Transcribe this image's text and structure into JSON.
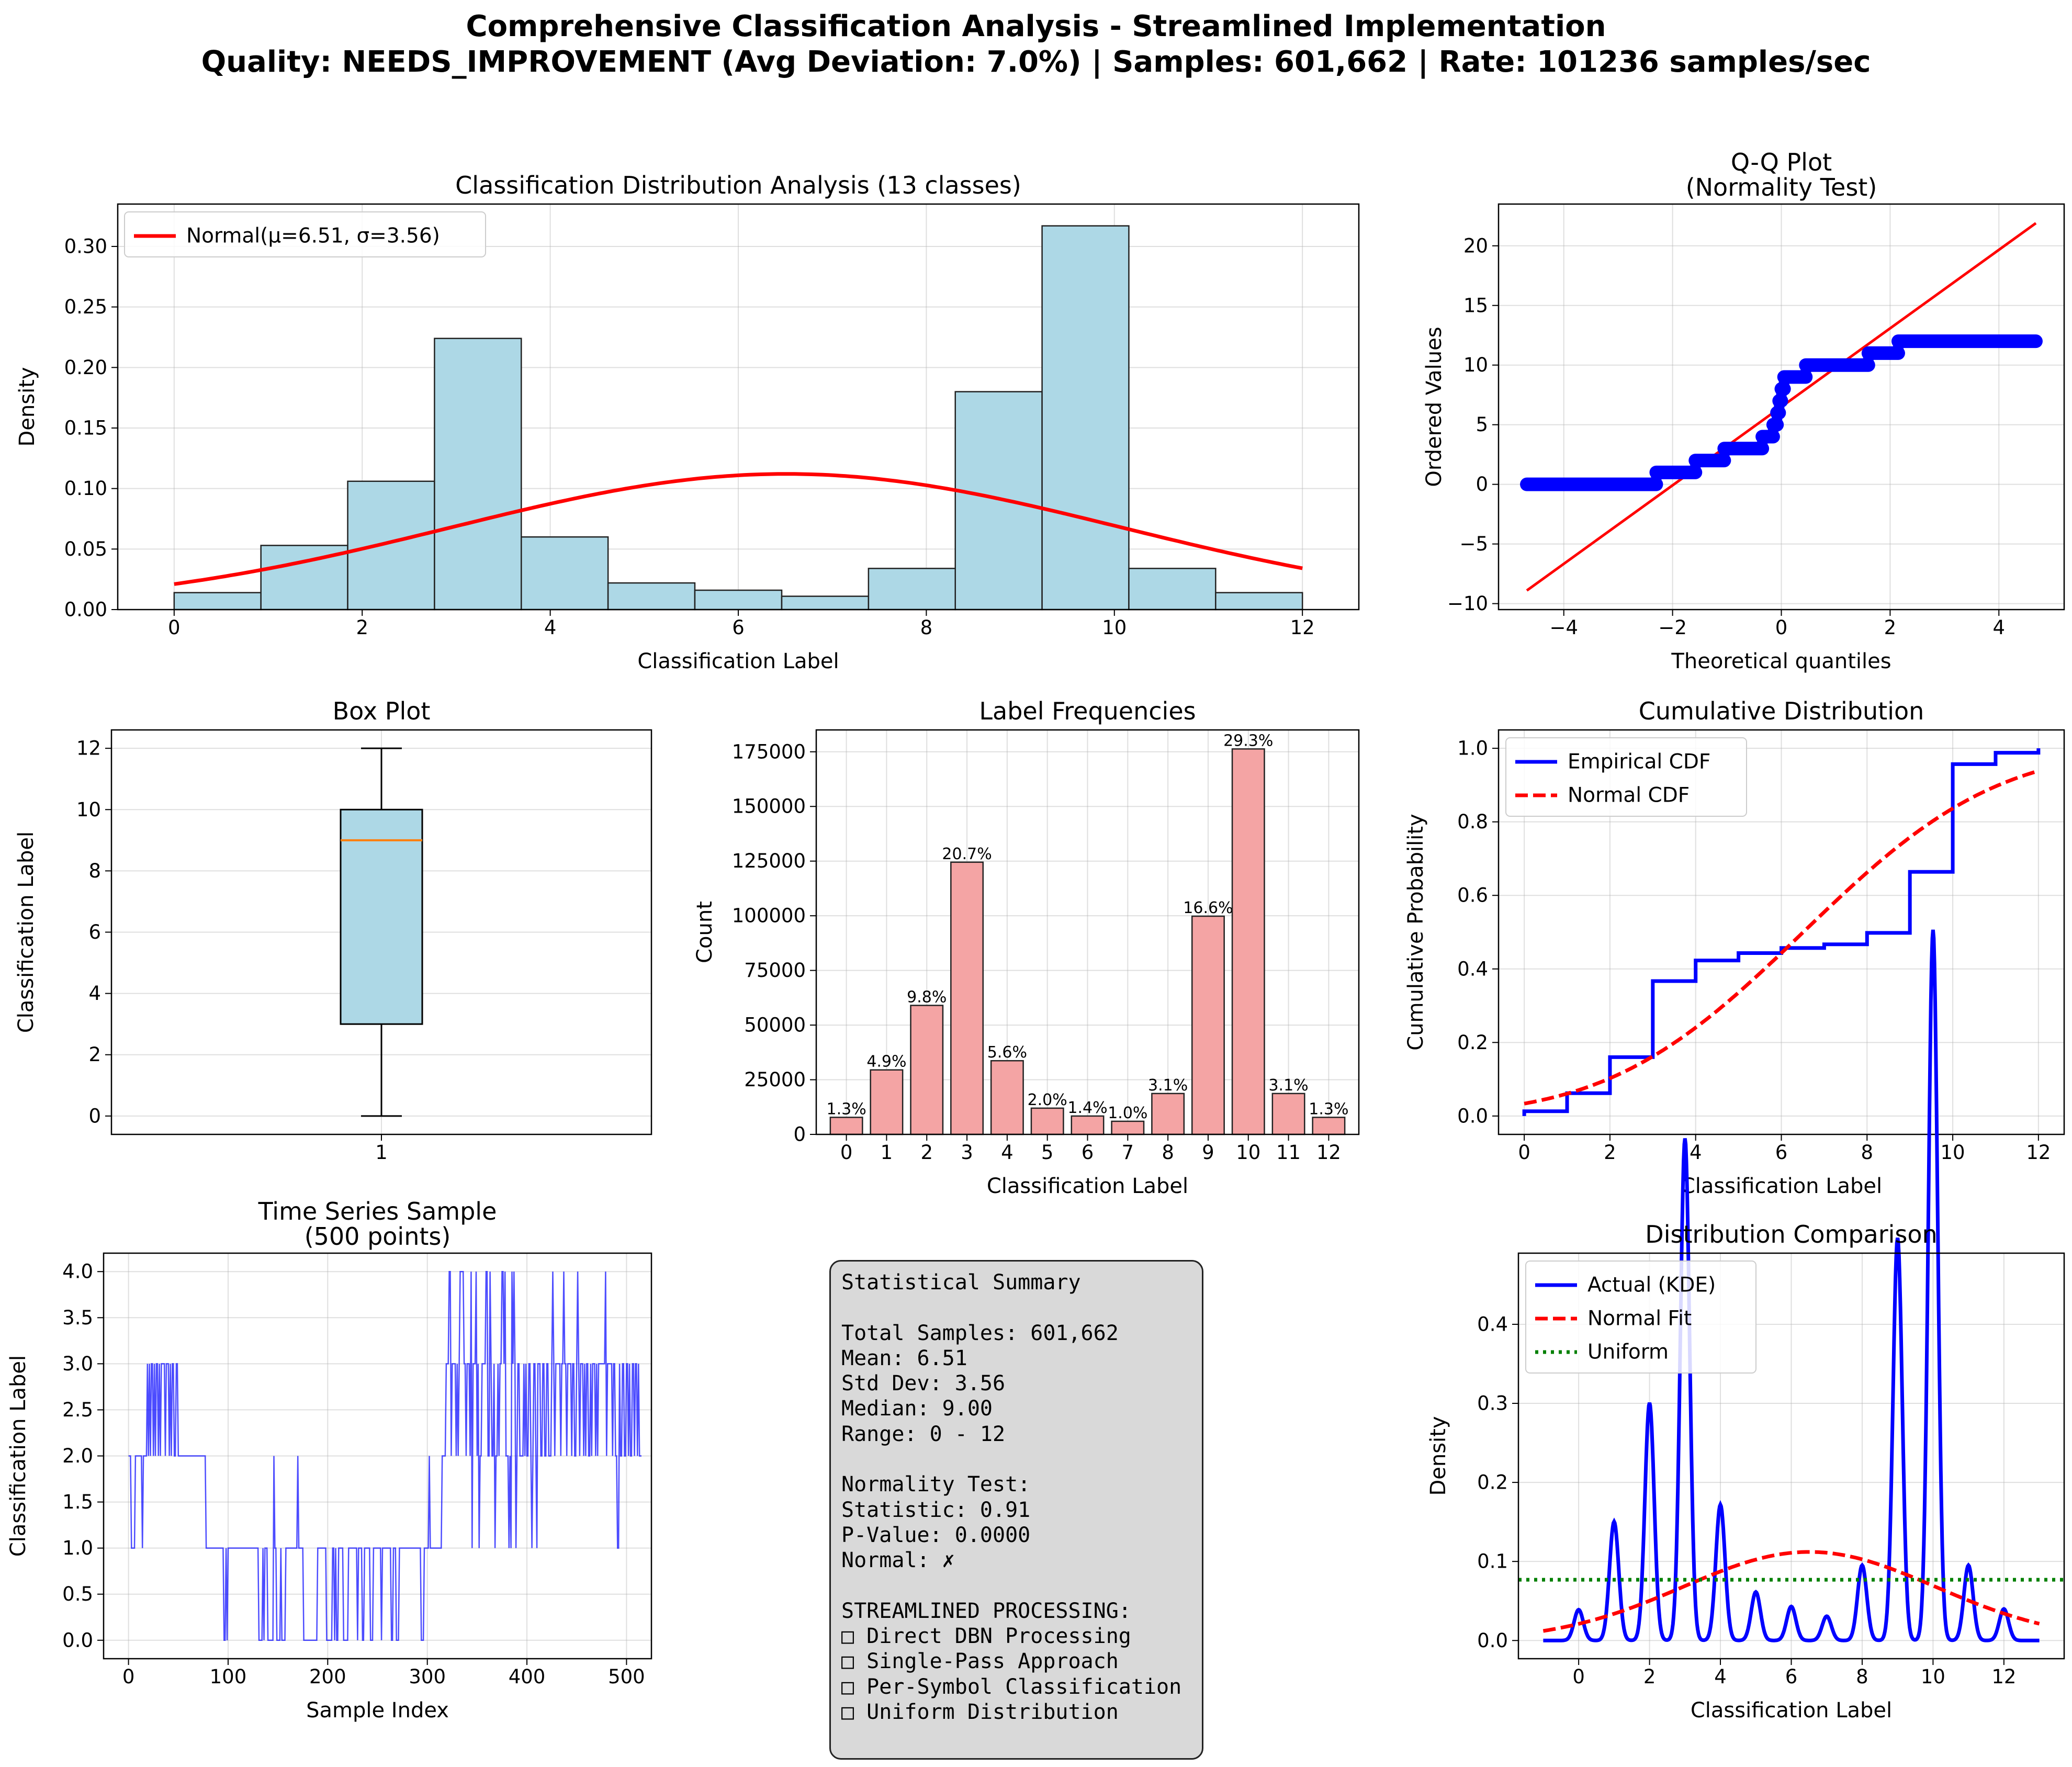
{
  "figure": {
    "title_line1": "Comprehensive Classification Analysis - Streamlined Implementation",
    "title_line2": "Quality: NEEDS_IMPROVEMENT (Avg Deviation: 7.0%) | Samples: 601,662 | Rate: 101236 samples/sec"
  },
  "colors": {
    "hist_fill": "#add8e6",
    "bar_fill": "#f4a4a4",
    "fit_red": "#ff0000",
    "empirical_blue": "#0000ff",
    "uniform_green": "#008000",
    "median_orange": "#ff7f0e",
    "box_fill": "#add8e6",
    "stats_bg": "#d9d9d9"
  },
  "chart_data": [
    {
      "id": "histogram",
      "type": "bar",
      "title": "Classification Distribution Analysis (13 classes)",
      "xlabel": "Classification Label",
      "ylabel": "Density",
      "xlim": [
        -0.6,
        12.6
      ],
      "ylim": [
        0,
        0.335
      ],
      "xticks": [
        0,
        2,
        4,
        6,
        8,
        10,
        12
      ],
      "yticks": [
        0.0,
        0.05,
        0.1,
        0.15,
        0.2,
        0.25,
        0.3
      ],
      "ytick_labels": [
        "0.00",
        "0.05",
        "0.10",
        "0.15",
        "0.20",
        "0.25",
        "0.30"
      ],
      "bin_edges": [
        0,
        0.923,
        1.846,
        2.769,
        3.692,
        4.615,
        5.538,
        6.462,
        7.385,
        8.308,
        9.231,
        10.154,
        11.077,
        12
      ],
      "values": [
        0.014,
        0.053,
        0.106,
        0.224,
        0.06,
        0.022,
        0.016,
        0.011,
        0.034,
        0.18,
        0.317,
        0.034,
        0.014
      ],
      "fit": {
        "mu": 6.51,
        "sigma": 3.56,
        "x_range": [
          0,
          12
        ]
      },
      "legend": [
        "Normal(μ=6.51, σ=3.56)"
      ],
      "legend_loc": "upper left",
      "grid": true
    },
    {
      "id": "qqplot",
      "type": "scatter",
      "title": "Q-Q Plot",
      "subtitle": "(Normality Test)",
      "xlabel": "Theoretical quantiles",
      "ylabel": "Ordered Values",
      "xlim": [
        -5.2,
        5.2
      ],
      "ylim": [
        -10.5,
        23.5
      ],
      "xticks": [
        -4,
        -2,
        0,
        2,
        4
      ],
      "yticks": [
        -10,
        -5,
        0,
        5,
        10,
        15,
        20
      ],
      "line": {
        "x": [
          -4.68,
          4.68
        ],
        "y": [
          -8.9,
          21.9
        ]
      },
      "steps": [
        {
          "x0": -4.68,
          "x1": -2.3,
          "y": 0
        },
        {
          "x0": -2.3,
          "x1": -1.58,
          "y": 1
        },
        {
          "x0": -1.58,
          "x1": -1.05,
          "y": 2
        },
        {
          "x0": -1.05,
          "x1": -0.35,
          "y": 3
        },
        {
          "x0": -0.35,
          "x1": -0.15,
          "y": 4
        },
        {
          "x0": -0.15,
          "x1": -0.08,
          "y": 5
        },
        {
          "x0": -0.08,
          "x1": -0.04,
          "y": 6
        },
        {
          "x0": -0.04,
          "x1": 0.0,
          "y": 7
        },
        {
          "x0": 0.0,
          "x1": 0.05,
          "y": 8
        },
        {
          "x0": 0.05,
          "x1": 0.45,
          "y": 9
        },
        {
          "x0": 0.45,
          "x1": 1.6,
          "y": 10
        },
        {
          "x0": 1.6,
          "x1": 2.15,
          "y": 11
        },
        {
          "x0": 2.15,
          "x1": 4.68,
          "y": 12
        }
      ],
      "grid": true
    },
    {
      "id": "boxplot",
      "type": "box",
      "title": "Box Plot",
      "ylabel": "Classification Label",
      "xticks": [
        1
      ],
      "xlim": [
        0.5,
        1.5
      ],
      "ylim": [
        -0.6,
        12.6
      ],
      "yticks": [
        0,
        2,
        4,
        6,
        8,
        10,
        12
      ],
      "box": {
        "min": 0,
        "q1": 3,
        "median": 9,
        "q3": 10,
        "max": 12
      },
      "grid": true
    },
    {
      "id": "frequencies",
      "type": "bar",
      "title": "Label Frequencies",
      "xlabel": "Classification Label",
      "ylabel": "Count",
      "xlim": [
        -0.75,
        12.75
      ],
      "ylim": [
        0,
        185000
      ],
      "yticks": [
        0,
        25000,
        50000,
        75000,
        100000,
        125000,
        150000,
        175000
      ],
      "categories": [
        "0",
        "1",
        "2",
        "3",
        "4",
        "5",
        "6",
        "7",
        "8",
        "9",
        "10",
        "11",
        "12"
      ],
      "values": [
        7800,
        29500,
        59000,
        124500,
        33700,
        12000,
        8400,
        6000,
        18700,
        99800,
        176300,
        18700,
        7800
      ],
      "data_labels": [
        "1.3%",
        "4.9%",
        "9.8%",
        "20.7%",
        "5.6%",
        "2.0%",
        "1.4%",
        "1.0%",
        "3.1%",
        "16.6%",
        "29.3%",
        "3.1%",
        "1.3%"
      ],
      "grid": true
    },
    {
      "id": "cdf",
      "type": "line",
      "title": "Cumulative Distribution",
      "xlabel": "Classification Label",
      "ylabel": "Cumulative Probability",
      "xlim": [
        -0.6,
        12.6
      ],
      "ylim": [
        -0.05,
        1.05
      ],
      "xticks": [
        0,
        2,
        4,
        6,
        8,
        10,
        12
      ],
      "yticks": [
        0.0,
        0.2,
        0.4,
        0.6,
        0.8,
        1.0
      ],
      "ytick_labels": [
        "0.0",
        "0.2",
        "0.4",
        "0.6",
        "0.8",
        "1.0"
      ],
      "series": [
        {
          "name": "Empirical CDF",
          "x": [
            0,
            1,
            2,
            3,
            4,
            5,
            6,
            7,
            8,
            9,
            10,
            11,
            12
          ],
          "y": [
            0.013,
            0.062,
            0.16,
            0.367,
            0.423,
            0.443,
            0.457,
            0.467,
            0.498,
            0.664,
            0.957,
            0.988,
            1.0
          ]
        },
        {
          "name": "Normal CDF",
          "mu": 6.51,
          "sigma": 3.56
        }
      ],
      "legend_loc": "upper left",
      "grid": true
    },
    {
      "id": "timeseries",
      "type": "line",
      "title": "Time Series Sample",
      "subtitle": "(500 points)",
      "xlabel": "Sample Index",
      "ylabel": "Classification Label",
      "xlim": [
        -25,
        525
      ],
      "ylim": [
        -0.2,
        4.2
      ],
      "xticks": [
        0,
        100,
        200,
        300,
        400,
        500
      ],
      "yticks": [
        0.0,
        0.5,
        1.0,
        1.5,
        2.0,
        2.5,
        3.0,
        3.5,
        4.0
      ],
      "ytick_labels": [
        "0.0",
        "0.5",
        "1.0",
        "1.5",
        "2.0",
        "2.5",
        "3.0",
        "3.5",
        "4.0"
      ],
      "values": [
        2,
        2,
        2,
        1,
        1,
        1,
        1,
        2,
        2,
        2,
        2,
        2,
        2,
        2,
        1,
        2,
        2,
        2,
        2,
        3,
        2,
        3,
        2,
        3,
        3,
        2,
        3,
        2,
        3,
        3,
        2,
        3,
        2,
        3,
        3,
        3,
        3,
        2,
        3,
        3,
        3,
        2,
        3,
        2,
        3,
        3,
        2,
        2,
        3,
        3,
        2,
        2,
        2,
        2,
        2,
        2,
        2,
        2,
        2,
        2,
        2,
        2,
        2,
        2,
        2,
        2,
        2,
        2,
        2,
        2,
        2,
        2,
        2,
        2,
        2,
        2,
        2,
        2,
        1,
        1,
        1,
        1,
        1,
        1,
        1,
        1,
        1,
        1,
        1,
        1,
        1,
        1,
        1,
        1,
        1,
        1,
        0,
        0,
        1,
        0,
        1,
        1,
        1,
        1,
        1,
        1,
        1,
        1,
        1,
        1,
        1,
        1,
        1,
        1,
        1,
        1,
        1,
        1,
        1,
        1,
        1,
        1,
        1,
        1,
        1,
        1,
        1,
        1,
        1,
        1,
        1,
        0,
        0,
        0,
        0,
        1,
        0,
        1,
        1,
        1,
        0,
        0,
        0,
        0,
        0,
        0,
        2,
        1,
        1,
        0,
        0,
        0,
        0,
        1,
        0,
        0,
        0,
        0,
        1,
        1,
        1,
        1,
        1,
        1,
        1,
        1,
        1,
        1,
        1,
        1,
        2,
        1,
        1,
        1,
        1,
        1,
        0,
        0,
        0,
        0,
        0,
        0,
        0,
        0,
        0,
        0,
        0,
        0,
        0,
        0,
        1,
        1,
        1,
        1,
        1,
        1,
        1,
        1,
        1,
        0,
        0,
        0,
        0,
        0,
        0,
        1,
        1,
        0,
        1,
        0,
        0,
        1,
        1,
        1,
        1,
        1,
        0,
        0,
        0,
        0,
        0,
        1,
        1,
        1,
        1,
        1,
        1,
        1,
        1,
        1,
        0,
        1,
        1,
        1,
        1,
        0,
        0,
        1,
        1,
        1,
        1,
        1,
        1,
        0,
        0,
        0,
        1,
        1,
        1,
        1,
        1,
        1,
        1,
        1,
        0,
        1,
        1,
        1,
        1,
        1,
        1,
        1,
        1,
        1,
        0,
        0,
        1,
        1,
        1,
        0,
        0,
        0,
        1,
        1,
        1,
        1,
        1,
        1,
        1,
        1,
        1,
        1,
        1,
        1,
        1,
        1,
        1,
        1,
        1,
        1,
        1,
        1,
        1,
        1,
        0,
        0,
        0,
        1,
        1,
        1,
        1,
        1,
        2,
        1,
        1,
        1,
        1,
        1,
        1,
        1,
        1,
        1,
        1,
        1,
        1,
        2,
        2,
        2,
        2,
        3,
        3,
        3,
        4,
        4,
        2,
        3,
        3,
        3,
        3,
        2,
        3,
        2,
        3,
        4,
        4,
        4,
        4,
        3,
        3,
        2,
        3,
        3,
        3,
        2,
        4,
        1,
        3,
        3,
        3,
        4,
        2,
        3,
        1,
        2,
        2,
        3,
        3,
        3,
        3,
        4,
        4,
        2,
        2,
        4,
        3,
        2,
        2,
        3,
        1,
        2,
        2,
        3,
        2,
        3,
        3,
        4,
        4,
        3,
        4,
        2,
        2,
        2,
        1,
        2,
        1,
        4,
        3,
        4,
        3,
        1,
        2,
        3,
        3,
        2,
        2,
        2,
        2,
        3,
        2,
        3,
        2,
        2,
        3,
        3,
        2,
        1,
        2,
        3,
        3,
        2,
        1,
        3,
        3,
        3,
        2,
        2,
        3,
        3,
        2,
        2,
        3,
        3,
        2,
        2,
        2,
        3,
        4,
        3,
        2,
        3,
        3,
        3,
        3,
        3,
        2,
        3,
        3,
        4,
        3,
        3,
        2,
        3,
        3,
        3,
        3,
        2,
        3,
        3,
        2,
        2,
        3,
        4,
        3,
        2,
        3,
        3,
        3,
        2,
        3,
        2,
        3,
        3,
        2,
        2,
        3,
        2,
        3,
        3,
        3,
        2,
        3,
        2,
        3,
        3,
        3,
        3,
        3,
        3,
        3,
        4,
        2,
        3,
        3,
        3,
        3,
        3,
        2,
        3,
        3,
        2,
        2,
        1,
        1,
        3,
        2,
        2,
        3,
        3,
        2,
        2,
        3,
        3,
        2,
        3,
        2,
        2,
        3,
        3,
        2,
        3,
        3,
        2,
        3,
        2,
        2,
        2
      ],
      "grid": true
    },
    {
      "id": "kde",
      "type": "line",
      "title": "Distribution Comparison",
      "xlabel": "Classification Label",
      "ylabel": "Density",
      "xlim": [
        -1.7,
        13.7
      ],
      "ylim": [
        -0.023,
        0.49
      ],
      "xticks": [
        0,
        2,
        4,
        6,
        8,
        10,
        12
      ],
      "yticks": [
        0.0,
        0.1,
        0.2,
        0.3,
        0.4
      ],
      "ytick_labels": [
        "0.0",
        "0.1",
        "0.2",
        "0.3",
        "0.4"
      ],
      "kde_range": [
        -1,
        13
      ],
      "kde_bandwidth": 0.13,
      "kde_weights": [
        0.0127,
        0.049,
        0.098,
        0.207,
        0.056,
        0.02,
        0.014,
        0.01,
        0.031,
        0.166,
        0.293,
        0.031,
        0.013
      ],
      "series": [
        {
          "name": "Actual (KDE)"
        },
        {
          "name": "Normal Fit",
          "mu": 6.51,
          "sigma": 3.56
        },
        {
          "name": "Uniform",
          "y": 0.0769
        }
      ],
      "legend_loc": "upper left",
      "grid": true
    }
  ],
  "stats_panel": {
    "lines": [
      "Statistical Summary",
      "",
      "Total Samples: 601,662",
      "Mean: 6.51",
      "Std Dev: 3.56",
      "Median: 9.00",
      "Range: 0 - 12",
      "",
      "Normality Test:",
      "Statistic: 0.91",
      "P-Value: 0.0000",
      "Normal: ✗",
      "",
      "STREAMLINED PROCESSING:",
      "□ Direct DBN Processing",
      "□ Single-Pass Approach",
      "□ Per-Symbol Classification",
      "□ Uniform Distribution"
    ]
  }
}
